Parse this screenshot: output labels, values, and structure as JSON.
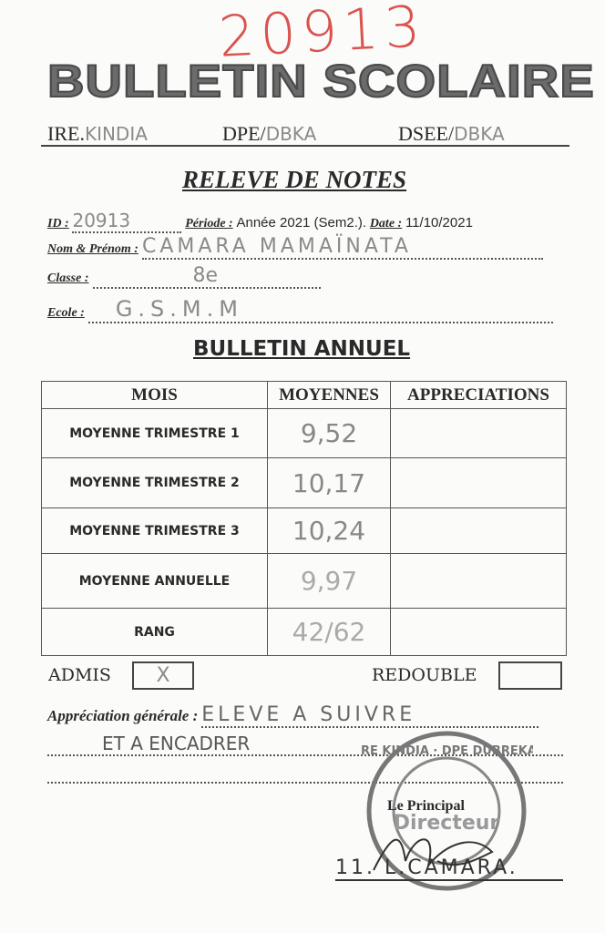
{
  "stamp_number": "20913",
  "header": {
    "title": "BULLETIN SCOLAIRE",
    "ire_label": "IRE.",
    "ire_value": "KINDIA",
    "dpe_label": "DPE/",
    "dpe_value": "DBKA",
    "dsee_label": "DSEE/",
    "dsee_value": "DBKA"
  },
  "releve": {
    "title": "RELEVE DE NOTES",
    "id_label": "ID :",
    "id_value": "20913",
    "periode_label": "Période :",
    "periode_text": "Année 2021 (Sem2.).",
    "date_label": "Date :",
    "date_value": "11/10/2021",
    "nom_label": "Nom & Prénom :",
    "nom_value": "CAMARA MAMAÏNATA",
    "classe_label": "Classe :",
    "classe_value": "8e",
    "ecole_label": "Ecole :",
    "ecole_value": "G.S.M.M"
  },
  "annuel": {
    "title": "BULLETIN ANNUEL",
    "columns": [
      "MOIS",
      "MOYENNES",
      "APPRECIATIONS"
    ],
    "rows": [
      {
        "label": "MOYENNE TRIMESTRE 1",
        "value": "9,52",
        "appreciation": ""
      },
      {
        "label": "MOYENNE TRIMESTRE 2",
        "value": "10,17",
        "appreciation": ""
      },
      {
        "label": "MOYENNE TRIMESTRE 3",
        "value": "10,24",
        "appreciation": ""
      },
      {
        "label": "MOYENNE ANNUELLE",
        "value": "9,97",
        "appreciation": ""
      },
      {
        "label": "RANG",
        "value": "42/62",
        "appreciation": ""
      }
    ]
  },
  "decision": {
    "admis_label": "ADMIS",
    "admis_mark": "X",
    "redouble_label": "REDOUBLE",
    "redouble_mark": ""
  },
  "appreciation": {
    "label": "Appréciation générale :",
    "line1": "ELEVE A SUIVRE",
    "line2": "ET A ENCADRER"
  },
  "signature": {
    "title": "Le Principal",
    "name": "11. L.CAMARA.",
    "stamp_text": "IRE KINDIA · DPE DUBREKA · Le Directeur"
  }
}
